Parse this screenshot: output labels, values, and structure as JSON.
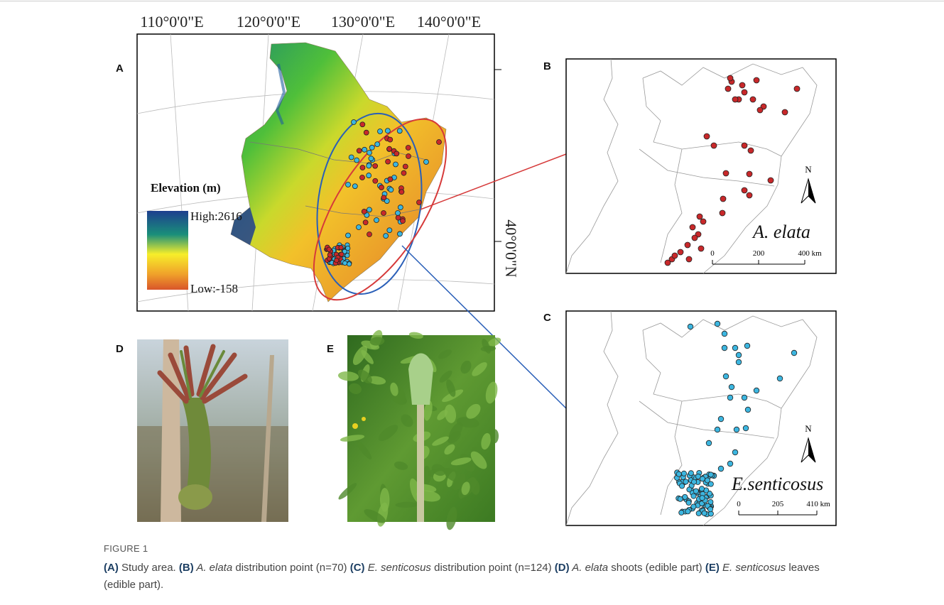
{
  "figure": {
    "panels": {
      "A": {
        "label": "A",
        "lon_labels": [
          "110°0'0\"E",
          "120°0'0\"E",
          "130°0'0\"E",
          "140°0'0\"E"
        ],
        "lat_label": "40°0'0\"N",
        "legend": {
          "title": "Elevation (m)",
          "high": "High:2616",
          "low": "Low:-158"
        }
      },
      "B": {
        "label": "B",
        "species": "A. elata",
        "north": "N",
        "scale": [
          "0",
          "200",
          "400 km"
        ]
      },
      "C": {
        "label": "C",
        "species": "E.senticosus",
        "north": "N",
        "scale": [
          "0",
          "205",
          "410 km"
        ]
      },
      "D": {
        "label": "D"
      },
      "E": {
        "label": "E"
      }
    },
    "caption": {
      "figure_label": "FIGURE 1",
      "segments": [
        {
          "text": "(A)",
          "style": "bold"
        },
        {
          "text": " Study area. ",
          "style": "plain"
        },
        {
          "text": "(B)",
          "style": "bold"
        },
        {
          "text": " A. elata",
          "style": "italic"
        },
        {
          "text": " distribution point (n=70) ",
          "style": "plain"
        },
        {
          "text": "(C)",
          "style": "bold"
        },
        {
          "text": " E. senticosus",
          "style": "italic"
        },
        {
          "text": " distribution point (n=124) ",
          "style": "plain"
        },
        {
          "text": "(D)",
          "style": "bold"
        },
        {
          "text": " A. elata",
          "style": "italic"
        },
        {
          "text": " shoots (edible part) ",
          "style": "plain"
        },
        {
          "text": "(E)",
          "style": "bold"
        },
        {
          "text": " E. senticosus",
          "style": "italic"
        },
        {
          "text": " leaves (edible part).",
          "style": "plain"
        }
      ]
    }
  }
}
